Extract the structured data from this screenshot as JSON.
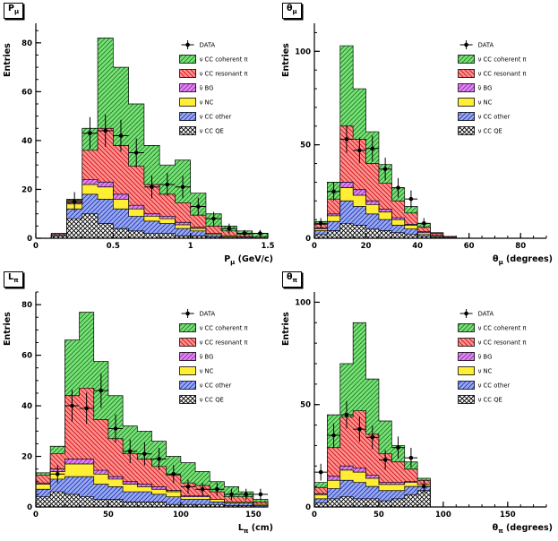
{
  "page": {
    "background": "#ffffff"
  },
  "legend": [
    {
      "key": "data",
      "label": "DATA"
    },
    {
      "key": "cc_coherent",
      "label": "ν CC coherent π"
    },
    {
      "key": "cc_resonant",
      "label": "ν CC resonant π"
    },
    {
      "key": "nubar_bg",
      "label": "ν̄ BG"
    },
    {
      "key": "nc",
      "label": "ν NC"
    },
    {
      "key": "cc_other",
      "label": "ν CC other"
    },
    {
      "key": "cc_qe",
      "label": "ν CC QE"
    }
  ],
  "series_styles": {
    "cc_coherent": {
      "bg": "#7fdd7f",
      "line": "#0b8a0b",
      "hatch": "fwd"
    },
    "cc_resonant": {
      "bg": "#ff9090",
      "line": "#cc1111",
      "hatch": "back"
    },
    "nubar_bg": {
      "bg": "#dd88ee",
      "line": "#9922bb",
      "hatch": "fwd"
    },
    "nc": {
      "bg": "#ffee33",
      "line": "#d4b800",
      "hatch": "none"
    },
    "cc_other": {
      "bg": "#99aaee",
      "line": "#2233bb",
      "hatch": "fwd"
    },
    "cc_qe": {
      "bg": "#ffffff",
      "line": "#000000",
      "hatch": "cross"
    }
  },
  "chart_data": [
    {
      "type": "bar",
      "id": "pmu",
      "title_main": "P",
      "title_sub": "μ",
      "xlabel_main": "P",
      "xlabel_sub": "μ",
      "xlabel_rest": " (GeV/c)",
      "ylabel": "Entries",
      "xlim": [
        0,
        1.5
      ],
      "ylim": [
        0,
        88
      ],
      "x_ticks": [
        0,
        0.5,
        1,
        1.5
      ],
      "x_tick_labels": [
        "0",
        "0.5",
        "1",
        "1.5"
      ],
      "x_minor": 0.1,
      "y_ticks": [
        0,
        20,
        40,
        60,
        80
      ],
      "y_minor": 5,
      "bin_edges": [
        0.1,
        0.2,
        0.3,
        0.4,
        0.5,
        0.6,
        0.7,
        0.8,
        0.9,
        1.0,
        1.1,
        1.2,
        1.3,
        1.4,
        1.5
      ],
      "stack": [
        {
          "key": "cc_qe",
          "values": [
            1,
            8,
            10,
            6,
            4,
            3,
            2,
            2,
            1,
            1,
            0.5,
            0,
            0,
            0
          ]
        },
        {
          "key": "cc_other",
          "values": [
            0.5,
            4,
            8,
            10,
            8,
            6,
            5,
            4,
            3,
            2,
            1,
            0.5,
            0.5,
            0
          ]
        },
        {
          "key": "nc",
          "values": [
            0,
            2,
            4,
            5,
            4,
            3,
            2,
            2,
            1.5,
            1,
            0.5,
            0.5,
            0,
            0
          ]
        },
        {
          "key": "nubar_bg",
          "values": [
            0,
            0.5,
            2,
            2,
            2,
            1.5,
            1,
            1,
            1,
            0.5,
            0,
            0,
            0,
            0
          ]
        },
        {
          "key": "cc_resonant",
          "values": [
            0.5,
            1,
            12,
            22,
            20,
            16,
            12,
            9,
            8,
            5,
            3,
            2,
            1,
            0.5
          ]
        },
        {
          "key": "cc_coherent",
          "values": [
            0,
            0.5,
            9,
            37,
            32,
            25.5,
            16,
            12,
            17.5,
            9,
            5,
            2,
            1.5,
            1.5
          ]
        }
      ],
      "data_points": {
        "x": [
          0.25,
          0.35,
          0.45,
          0.55,
          0.65,
          0.75,
          0.85,
          0.95,
          1.05,
          1.15,
          1.25,
          1.35,
          1.45
        ],
        "y": [
          15,
          43,
          44,
          42,
          35,
          21,
          22,
          21,
          13,
          8,
          4,
          2,
          2
        ],
        "yerr": [
          3.9,
          6.6,
          6.6,
          6.5,
          5.9,
          4.6,
          4.7,
          4.6,
          3.6,
          2.8,
          2,
          1.4,
          1.4
        ],
        "xerr": 0.05
      }
    },
    {
      "type": "bar",
      "id": "thetamu",
      "title_main": "θ",
      "title_sub": "μ",
      "xlabel_main": "θ",
      "xlabel_sub": "μ",
      "xlabel_rest": " (degrees)",
      "ylabel": "Entries",
      "xlim": [
        0,
        90
      ],
      "ylim": [
        0,
        115
      ],
      "x_ticks": [
        0,
        20,
        40,
        60,
        80
      ],
      "x_tick_labels": [
        "0",
        "20",
        "40",
        "60",
        "80"
      ],
      "x_minor": 5,
      "y_ticks": [
        0,
        50,
        100
      ],
      "y_minor": 10,
      "bin_edges": [
        0,
        5,
        10,
        15,
        20,
        25,
        30,
        35,
        40,
        45,
        50,
        55,
        60,
        65,
        70,
        75,
        80,
        85,
        90
      ],
      "stack": [
        {
          "key": "cc_qe",
          "values": [
            2,
            4,
            8,
            7,
            5,
            4,
            3,
            2,
            1,
            0.5,
            0,
            0,
            0,
            0,
            0,
            0,
            0,
            0
          ]
        },
        {
          "key": "cc_other",
          "values": [
            2,
            5,
            12,
            10,
            8,
            6,
            4,
            3,
            1,
            0.5,
            0.5,
            0,
            0,
            0,
            0,
            0,
            0,
            0
          ]
        },
        {
          "key": "nc",
          "values": [
            1,
            3,
            7,
            6,
            5,
            4,
            3,
            2,
            1,
            0.5,
            0,
            0,
            0,
            0,
            0,
            0,
            0,
            0
          ]
        },
        {
          "key": "nubar_bg",
          "values": [
            0.5,
            1,
            3,
            3,
            2,
            1.5,
            1,
            0.5,
            0.5,
            0,
            0,
            0,
            0,
            0,
            0,
            0,
            0,
            0
          ]
        },
        {
          "key": "cc_resonant",
          "values": [
            2,
            8,
            30,
            27,
            20,
            14,
            9,
            6,
            2.5,
            1,
            0.5,
            0,
            0,
            0,
            0,
            0,
            0,
            0
          ]
        },
        {
          "key": "cc_coherent",
          "values": [
            1.5,
            9,
            43,
            27,
            17,
            10,
            7,
            3.5,
            2,
            0.5,
            0,
            0,
            0,
            0,
            0,
            0,
            0,
            0
          ]
        }
      ],
      "data_points": {
        "x": [
          2.5,
          7.5,
          12.5,
          17.5,
          22.5,
          27.5,
          32.5,
          37.5,
          42.5
        ],
        "y": [
          8,
          25,
          53,
          47,
          48,
          37,
          27,
          21,
          8
        ],
        "yerr": [
          2.8,
          5,
          7.3,
          6.9,
          6.9,
          6.1,
          5.2,
          4.6,
          2.8
        ],
        "xerr": 2.5
      }
    },
    {
      "type": "bar",
      "id": "lpi",
      "title_main": "L",
      "title_sub": "π",
      "xlabel_main": "L",
      "xlabel_sub": "π",
      "xlabel_rest": " (cm)",
      "ylabel": "Entries",
      "xlim": [
        0,
        160
      ],
      "ylim": [
        0,
        85
      ],
      "x_ticks": [
        0,
        50,
        100,
        150
      ],
      "x_tick_labels": [
        "0",
        "50",
        "100",
        "150"
      ],
      "x_minor": 10,
      "y_ticks": [
        0,
        20,
        40,
        60,
        80
      ],
      "y_minor": 5,
      "bin_edges": [
        0,
        10,
        20,
        30,
        40,
        50,
        60,
        70,
        80,
        90,
        100,
        110,
        120,
        130,
        140,
        150,
        160
      ],
      "stack": [
        {
          "key": "cc_qe",
          "values": [
            4,
            6,
            5,
            4,
            3,
            3,
            2,
            2,
            2,
            1,
            1,
            1,
            1,
            0.5,
            0.5,
            0
          ]
        },
        {
          "key": "cc_other",
          "values": [
            3,
            5,
            7,
            8,
            6,
            5,
            4,
            4,
            3,
            3,
            2,
            2,
            1,
            1,
            1,
            0.5
          ]
        },
        {
          "key": "nc",
          "values": [
            2,
            3,
            5,
            5,
            4,
            3,
            3,
            2,
            2,
            2,
            1,
            1,
            1,
            0.5,
            0.5,
            0.5
          ]
        },
        {
          "key": "nubar_bg",
          "values": [
            0.5,
            1,
            2,
            2,
            1.5,
            1,
            1,
            1,
            1,
            0.5,
            0.5,
            0.5,
            0,
            0,
            0,
            0
          ]
        },
        {
          "key": "cc_resonant",
          "values": [
            3,
            6,
            25,
            28,
            20,
            15,
            11,
            10,
            8,
            6,
            5,
            4,
            3,
            2,
            2,
            1
          ]
        },
        {
          "key": "cc_coherent",
          "values": [
            1,
            3,
            22,
            30,
            23,
            17,
            11,
            11,
            10,
            7.5,
            8,
            5.5,
            4,
            4,
            2,
            1
          ]
        }
      ],
      "data_points": {
        "x": [
          15,
          25,
          35,
          45,
          55,
          65,
          75,
          85,
          95,
          105,
          115,
          125,
          135,
          145,
          155
        ],
        "y": [
          13,
          40,
          39,
          46,
          31,
          22,
          21,
          19,
          13,
          8,
          7,
          7,
          5,
          5,
          5
        ],
        "yerr": [
          3.6,
          6.3,
          6.2,
          6.8,
          5.6,
          4.7,
          4.6,
          4.4,
          3.6,
          2.8,
          2.6,
          2.6,
          2.2,
          2.2,
          2.2
        ],
        "xerr": 5
      }
    },
    {
      "type": "bar",
      "id": "thetapi",
      "title_main": "θ",
      "title_sub": "π",
      "xlabel_main": "θ",
      "xlabel_sub": "π",
      "xlabel_rest": " (degrees)",
      "ylabel": "Entries",
      "xlim": [
        0,
        180
      ],
      "ylim": [
        0,
        105
      ],
      "x_ticks": [
        0,
        50,
        100,
        150
      ],
      "x_tick_labels": [
        "0",
        "50",
        "100",
        "150"
      ],
      "x_minor": 10,
      "y_ticks": [
        0,
        50,
        100
      ],
      "y_minor": 10,
      "bin_edges": [
        0,
        10,
        20,
        30,
        40,
        50,
        60,
        70,
        80,
        90,
        100,
        110,
        120,
        130,
        140,
        150,
        160,
        170,
        180
      ],
      "stack": [
        {
          "key": "cc_qe",
          "values": [
            2,
            4,
            5,
            4,
            4,
            3,
            4,
            6,
            8,
            0,
            0,
            0,
            0,
            0,
            0,
            0,
            0,
            0
          ]
        },
        {
          "key": "cc_other",
          "values": [
            2,
            5,
            8,
            8,
            6,
            5,
            4,
            4,
            2,
            0,
            0,
            0,
            0,
            0,
            0,
            0,
            0,
            0
          ]
        },
        {
          "key": "nc",
          "values": [
            2,
            4,
            5,
            5,
            4,
            3,
            3,
            2,
            1,
            0,
            0,
            0,
            0,
            0,
            0,
            0,
            0,
            0
          ]
        },
        {
          "key": "nubar_bg",
          "values": [
            0.5,
            2,
            2,
            2,
            1.5,
            1,
            1,
            0.5,
            0,
            0,
            0,
            0,
            0,
            0,
            0,
            0,
            0,
            0
          ]
        },
        {
          "key": "cc_resonant",
          "values": [
            3,
            14,
            24,
            28,
            20,
            14,
            10,
            6,
            2,
            0,
            0,
            0,
            0,
            0,
            0,
            0,
            0,
            0
          ]
        },
        {
          "key": "cc_coherent",
          "values": [
            2.5,
            16,
            26,
            43,
            27,
            16,
            8,
            3.5,
            1,
            0,
            0,
            0,
            0,
            0,
            0,
            0,
            0,
            0
          ]
        }
      ],
      "data_points": {
        "x": [
          5,
          15,
          25,
          35,
          45,
          55,
          65,
          75,
          85
        ],
        "y": [
          17,
          35,
          45,
          38,
          34,
          23,
          29,
          24,
          10
        ],
        "yerr": [
          4.1,
          5.9,
          6.7,
          6.2,
          5.8,
          4.8,
          5.4,
          4.9,
          3.2
        ],
        "xerr": 5
      }
    }
  ]
}
